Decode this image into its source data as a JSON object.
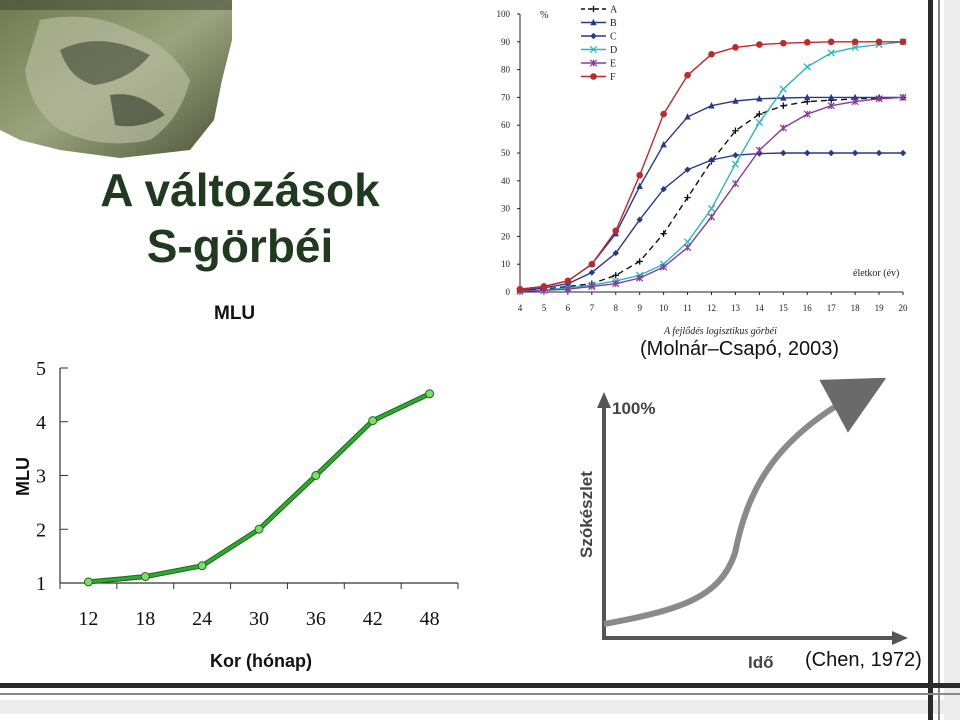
{
  "slide": {
    "title_line1": "A változások",
    "title_line2": "S-görbéi",
    "citation_molnar": "(Molnár–Csapó, 2003)",
    "citation_chen": "(Chen, 1972)"
  },
  "chart_data": [
    {
      "type": "line",
      "caption": "A fejlődés logisztikus görbéi",
      "xlabel": "életkor (év)",
      "ylabel": "%",
      "x": [
        4,
        5,
        6,
        7,
        8,
        9,
        10,
        11,
        12,
        13,
        14,
        15,
        16,
        17,
        18,
        19,
        20
      ],
      "xlim": [
        4,
        20
      ],
      "ylim": [
        0,
        100
      ],
      "yticks": [
        0,
        10,
        20,
        30,
        40,
        50,
        60,
        70,
        80,
        90,
        100
      ],
      "legend_position": "top-left",
      "series": [
        {
          "name": "A",
          "marker": "+",
          "dash": "6,4",
          "color": "#111111",
          "values": [
            0.5,
            1,
            2,
            3,
            6,
            11,
            21,
            34,
            47,
            58,
            64,
            67,
            68.5,
            69,
            69.5,
            69.8,
            70
          ]
        },
        {
          "name": "B",
          "marker": "triangle",
          "dash": "",
          "color": "#2a3a8a",
          "values": [
            1,
            2,
            4,
            10,
            21,
            38,
            53,
            63,
            67,
            68.7,
            69.5,
            69.8,
            70,
            70,
            70,
            70,
            70
          ]
        },
        {
          "name": "C",
          "marker": "diamond",
          "dash": "",
          "color": "#2a3a8a",
          "values": [
            0.5,
            1.5,
            3,
            7,
            14,
            26,
            37,
            44,
            47.5,
            49.2,
            49.8,
            50,
            50,
            50,
            50,
            50,
            50
          ]
        },
        {
          "name": "D",
          "marker": "x",
          "dash": "",
          "color": "#28b8c0",
          "values": [
            0.3,
            0.7,
            1.5,
            2.5,
            4,
            6,
            10,
            18,
            30,
            46,
            61,
            73,
            81,
            86,
            88,
            89,
            90
          ]
        },
        {
          "name": "E",
          "marker": "asterisk",
          "dash": "",
          "color": "#8a3a9a",
          "values": [
            0.3,
            0.6,
            1,
            2,
            3,
            5,
            9,
            16,
            27,
            39,
            51,
            59,
            64,
            67,
            68.5,
            69.5,
            70
          ]
        },
        {
          "name": "F",
          "marker": "circle",
          "dash": "",
          "color": "#c0282a",
          "values": [
            1,
            2,
            4,
            10,
            22,
            42,
            64,
            78,
            85.5,
            88,
            89,
            89.5,
            89.8,
            90,
            90,
            90,
            90
          ]
        }
      ]
    },
    {
      "type": "line",
      "title": "MLU",
      "xlabel": "Kor (hónap)",
      "ylabel": "MLU",
      "x": [
        12,
        18,
        24,
        30,
        36,
        42,
        48
      ],
      "values": [
        1.02,
        1.12,
        1.32,
        2.0,
        3.0,
        4.02,
        4.52
      ],
      "xlim": [
        9,
        51
      ],
      "ylim": [
        1,
        5
      ],
      "yticks": [
        1,
        2,
        3,
        4,
        5
      ],
      "grid": false,
      "color": "#2fa82f"
    },
    {
      "type": "line",
      "xlabel": "Idő",
      "ylabel": "Szókészlet",
      "ymax_label": "100%",
      "note": "schematic S-curve without numeric scale",
      "color": "#888888"
    }
  ]
}
